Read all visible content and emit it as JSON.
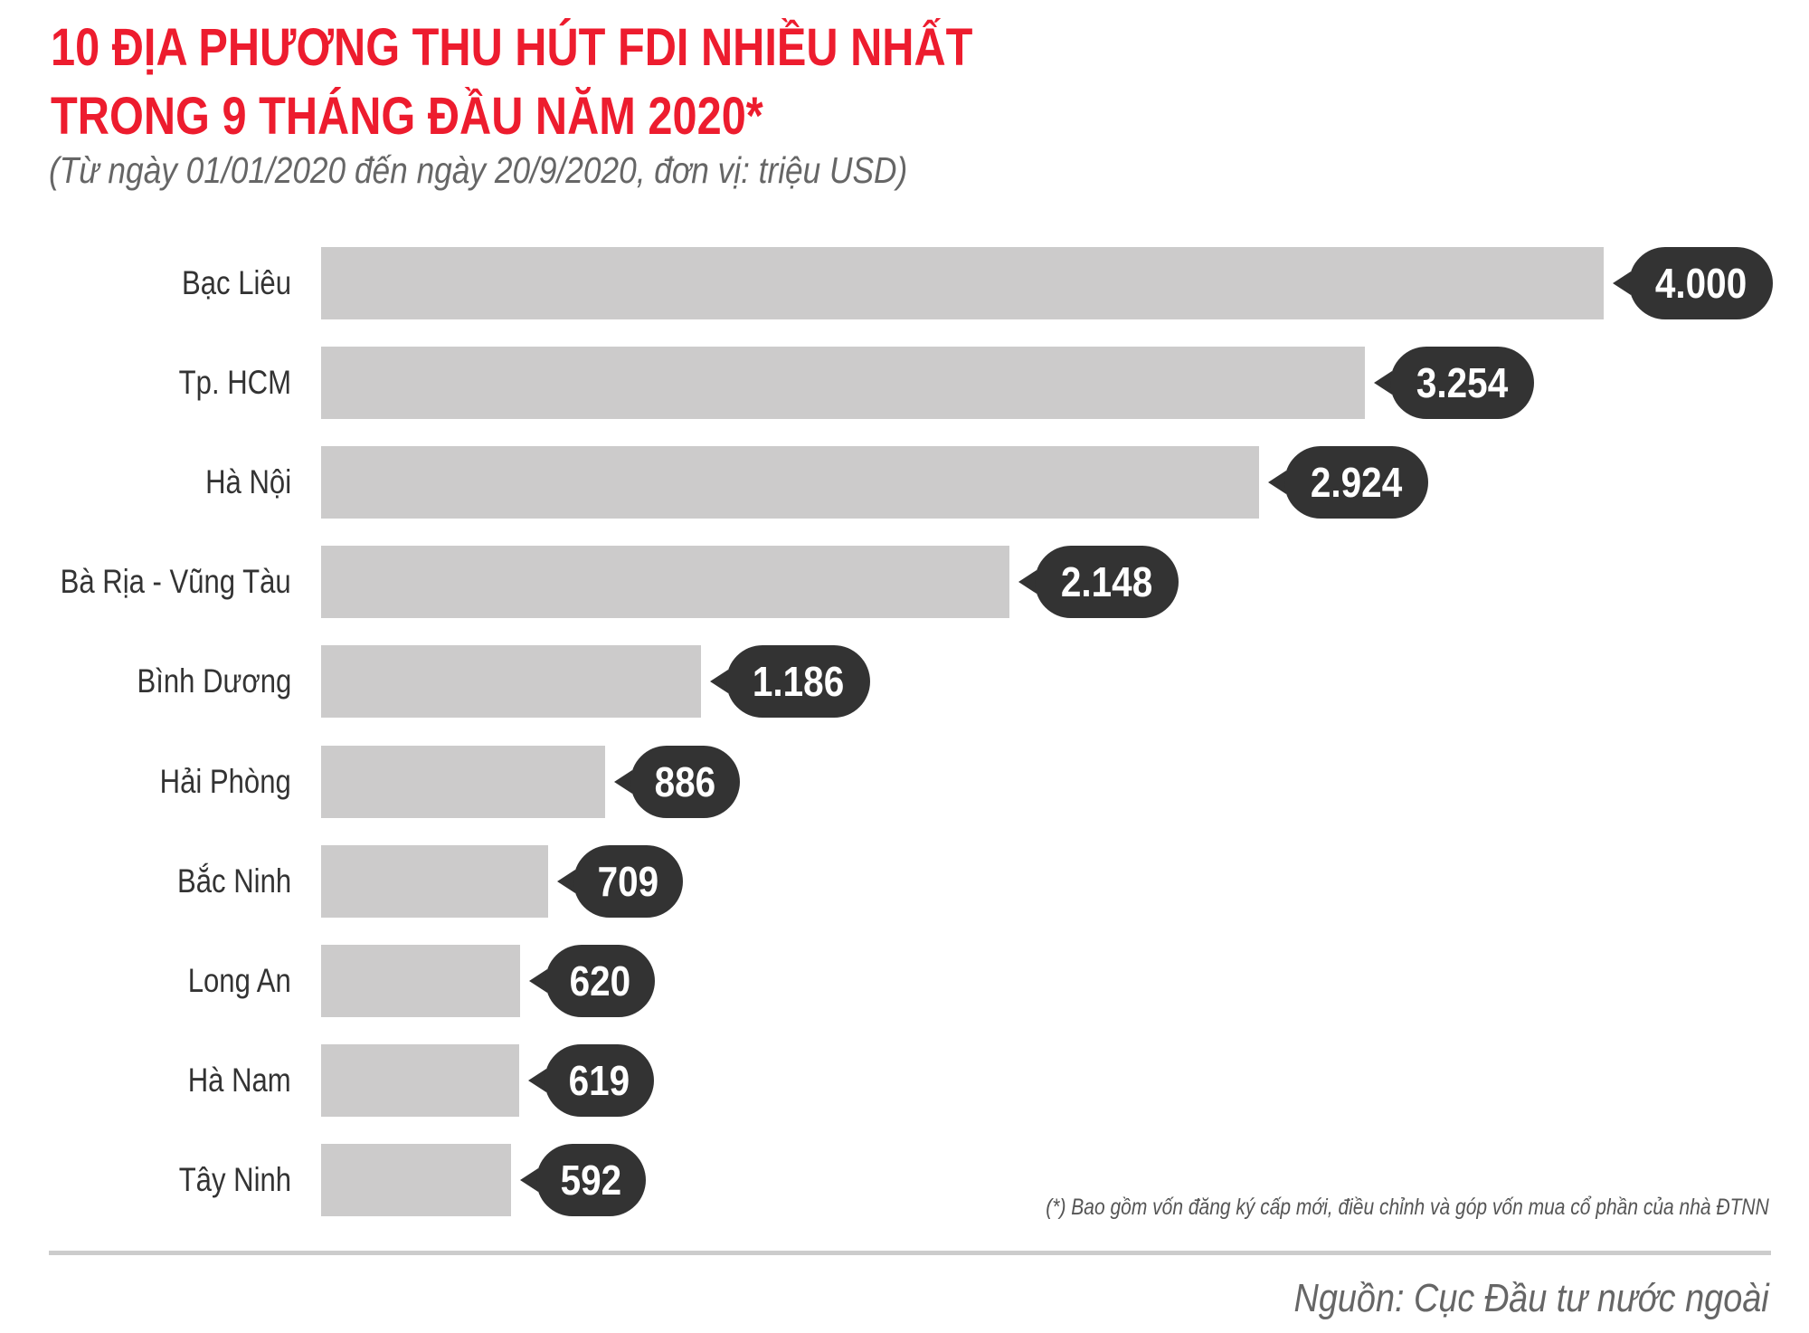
{
  "header": {
    "title_line1": "10 ĐỊA PHƯƠNG THU HÚT FDI NHIỀU NHẤT",
    "title_line2": "TRONG 9 THÁNG ĐẦU NĂM 2020*",
    "subtitle": "(Từ ngày 01/01/2020 đến ngày 20/9/2020, đơn vị: triệu USD)"
  },
  "colors": {
    "title": "#ED1C2E",
    "bar": "#CCCBCB",
    "bubble": "#333333",
    "bubble_text": "#FFFFFF",
    "label": "#333333",
    "subtitle": "#666666",
    "divider": "#CCCCCC"
  },
  "chart_data": {
    "type": "bar",
    "orientation": "horizontal",
    "title": "10 ĐỊA PHƯƠNG THU HÚT FDI NHIỀU NHẤT TRONG 9 THÁNG ĐẦU NĂM 2020*",
    "subtitle": "(Từ ngày 01/01/2020 đến ngày 20/9/2020, đơn vị: triệu USD)",
    "xlabel": "",
    "ylabel": "",
    "unit": "triệu USD",
    "categories": [
      "Bạc Liêu",
      "Tp. HCM",
      "Hà Nội",
      "Bà Rịa - Vũng Tàu",
      "Bình Dương",
      "Hải Phòng",
      "Bắc Ninh",
      "Long An",
      "Hà Nam",
      "Tây Ninh"
    ],
    "values": [
      4000,
      3254,
      2924,
      2148,
      1186,
      886,
      709,
      620,
      619,
      592
    ],
    "value_labels": [
      "4.000",
      "3.254",
      "2.924",
      "2.148",
      "1.186",
      "886",
      "709",
      "620",
      "619",
      "592"
    ],
    "xlim": [
      0,
      4000
    ],
    "grid": false,
    "legend": null
  },
  "footer": {
    "footnote": "(*) Bao gồm vốn đăng ký cấp mới, điều chỉnh và góp vốn mua cổ phần của nhà ĐTNN",
    "source": "Nguồn: Cục Đầu tư nước ngoài"
  }
}
